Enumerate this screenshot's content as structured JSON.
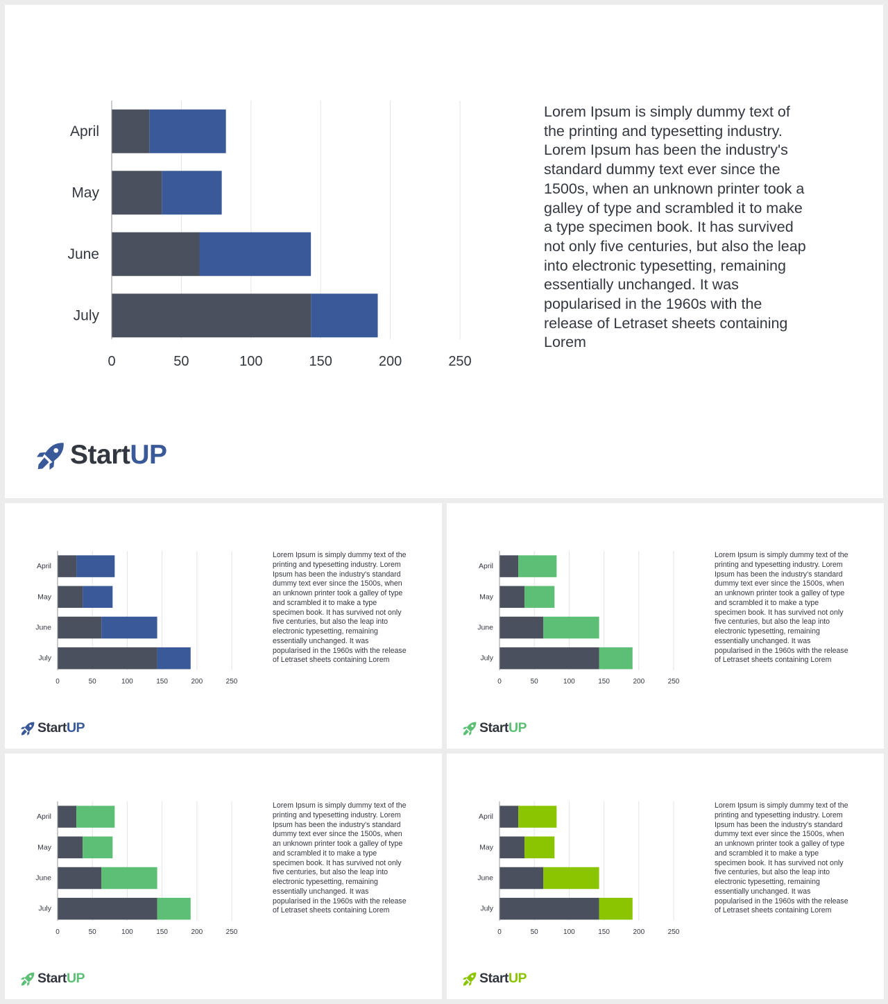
{
  "chart_data": {
    "type": "bar",
    "orientation": "horizontal",
    "stacked": true,
    "categories": [
      "April",
      "May",
      "June",
      "July"
    ],
    "series": [
      {
        "values": [
          27,
          36,
          63,
          143
        ]
      },
      {
        "values": [
          55,
          43,
          80,
          48
        ]
      }
    ],
    "xlim": [
      0,
      250
    ],
    "xticks": [
      0,
      50,
      100,
      150,
      200,
      250
    ],
    "grid": "vertical"
  },
  "colors": {
    "base_series": "#4a505d",
    "text": "#333740",
    "blue": "#3a5998",
    "green": "#5dbf75",
    "lime": "#8bc400"
  },
  "paragraph": "Lorem Ipsum is simply dummy text of the printing and typesetting industry. Lorem Ipsum has been the industry's standard dummy text ever since the 1500s, when an unknown printer took a galley of type and scrambled it to make a type specimen book. It has survived not only five centuries, but also the leap into electronic typesetting, remaining essentially unchanged. It was popularised in the 1960s with the release of Letraset sheets containing Lorem",
  "logo": {
    "start": "Start",
    "up": "UP",
    "icon": "rocket-icon"
  },
  "slides": [
    {
      "id": "slide-big",
      "accent": "blue"
    },
    {
      "id": "slide-blue",
      "accent": "blue"
    },
    {
      "id": "slide-green1",
      "accent": "green"
    },
    {
      "id": "slide-green2",
      "accent": "green"
    },
    {
      "id": "slide-lime",
      "accent": "lime"
    }
  ]
}
